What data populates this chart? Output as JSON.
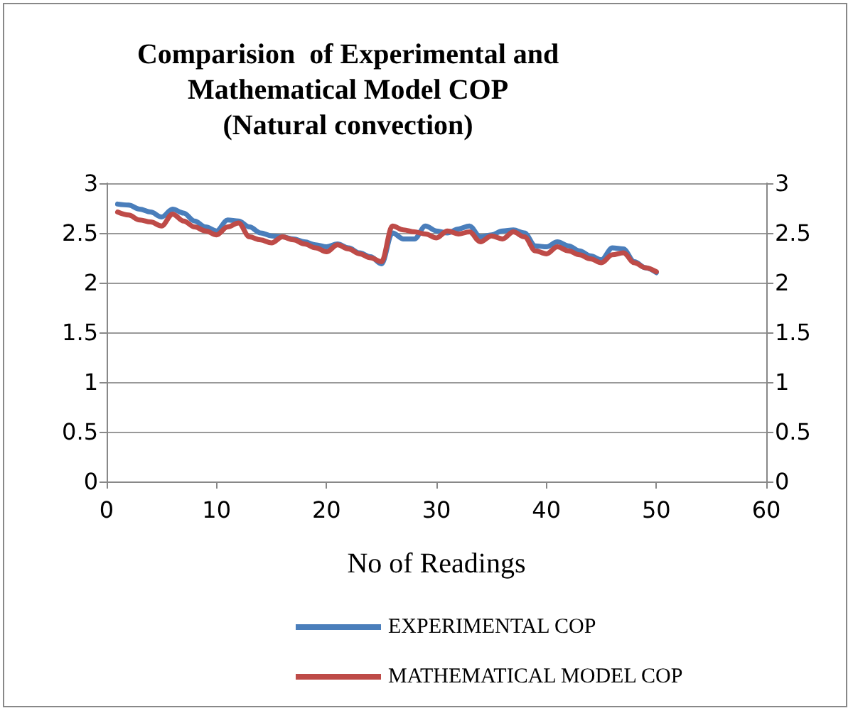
{
  "chart_data": {
    "type": "line",
    "title": "Comparision  of Experimental and\nMathematical Model COP\n(Natural convection)",
    "xlabel": "No of Readings",
    "x": [
      1,
      2,
      3,
      4,
      5,
      6,
      7,
      8,
      9,
      10,
      11,
      12,
      13,
      14,
      15,
      16,
      17,
      18,
      19,
      20,
      21,
      22,
      23,
      24,
      25,
      26,
      27,
      28,
      29,
      30,
      31,
      32,
      33,
      34,
      35,
      36,
      37,
      38,
      39,
      40,
      41,
      42,
      43,
      44,
      45,
      46,
      47,
      48,
      49,
      50
    ],
    "series": [
      {
        "name": "EXPERIMENTAL COP",
        "color": "#4a7ebb",
        "values": [
          2.79,
          2.78,
          2.74,
          2.71,
          2.66,
          2.74,
          2.7,
          2.62,
          2.56,
          2.52,
          2.63,
          2.62,
          2.56,
          2.5,
          2.47,
          2.46,
          2.44,
          2.41,
          2.38,
          2.36,
          2.39,
          2.35,
          2.3,
          2.26,
          2.19,
          2.5,
          2.44,
          2.44,
          2.57,
          2.52,
          2.5,
          2.54,
          2.57,
          2.46,
          2.48,
          2.52,
          2.53,
          2.5,
          2.37,
          2.36,
          2.41,
          2.37,
          2.32,
          2.27,
          2.23,
          2.35,
          2.34,
          2.21,
          2.15,
          2.1
        ]
      },
      {
        "name": "MATHEMATICAL MODEL COP",
        "color": "#be4b48",
        "values": [
          2.71,
          2.68,
          2.63,
          2.61,
          2.57,
          2.69,
          2.62,
          2.56,
          2.52,
          2.48,
          2.56,
          2.6,
          2.46,
          2.43,
          2.4,
          2.46,
          2.43,
          2.39,
          2.35,
          2.31,
          2.38,
          2.34,
          2.29,
          2.25,
          2.21,
          2.57,
          2.53,
          2.51,
          2.49,
          2.45,
          2.52,
          2.49,
          2.51,
          2.41,
          2.47,
          2.44,
          2.51,
          2.46,
          2.32,
          2.29,
          2.36,
          2.32,
          2.28,
          2.24,
          2.2,
          2.28,
          2.3,
          2.2,
          2.15,
          2.11
        ]
      }
    ],
    "xlim": [
      0,
      60
    ],
    "xticks": [
      0,
      10,
      20,
      30,
      40,
      50,
      60
    ],
    "ylim": [
      0,
      3
    ],
    "yticks": [
      0,
      0.5,
      1,
      1.5,
      2,
      2.5,
      3
    ],
    "y2lim": [
      0,
      3
    ],
    "y2ticks": [
      0,
      0.5,
      1,
      1.5,
      2,
      2.5,
      3
    ],
    "grid": "y",
    "legend": "bottom",
    "marker": "none",
    "line_style": "solid"
  }
}
